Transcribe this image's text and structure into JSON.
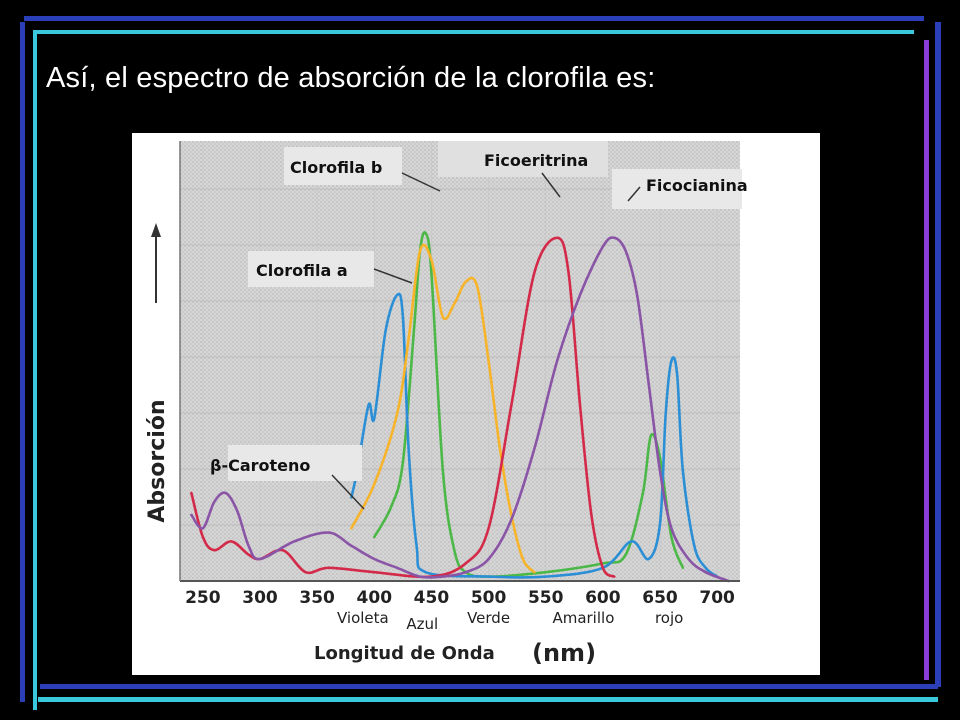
{
  "slide": {
    "title": "Así, el espectro de absorción de la clorofila es:"
  },
  "colors": {
    "background": "#000000",
    "frame_blue": "#2a3fb8",
    "frame_cyan": "#39c8dc",
    "frame_purple": "#8a3cd8"
  },
  "chart_data": {
    "type": "line",
    "xlabel": "Longitud de Onda",
    "xlabel_unit": "(nm)",
    "ylabel": "Absorción",
    "xlim": [
      230,
      720
    ],
    "ylim": [
      0,
      100
    ],
    "x_ticks": [
      250,
      300,
      350,
      400,
      450,
      500,
      550,
      600,
      650,
      700
    ],
    "regions": [
      {
        "label": "Violeta",
        "x": 390
      },
      {
        "label": "Azul",
        "x": 442
      },
      {
        "label": "Verde",
        "x": 500
      },
      {
        "label": "Amarillo",
        "x": 583
      },
      {
        "label": "rojo",
        "x": 658
      }
    ],
    "grid": true,
    "series": [
      {
        "name": "Clorofila b",
        "color": "#4cb848",
        "points": [
          [
            400,
            10
          ],
          [
            415,
            17
          ],
          [
            425,
            27
          ],
          [
            435,
            58
          ],
          [
            440,
            75
          ],
          [
            445,
            79
          ],
          [
            450,
            70
          ],
          [
            460,
            25
          ],
          [
            470,
            7
          ],
          [
            480,
            2
          ],
          [
            500,
            1
          ],
          [
            550,
            2
          ],
          [
            600,
            4
          ],
          [
            620,
            6
          ],
          [
            635,
            20
          ],
          [
            642,
            33
          ],
          [
            650,
            28
          ],
          [
            660,
            10
          ],
          [
            670,
            3
          ]
        ]
      },
      {
        "name": "Clorofila a",
        "color": "#2c8fd6",
        "points": [
          [
            380,
            19
          ],
          [
            385,
            25
          ],
          [
            395,
            40
          ],
          [
            400,
            37
          ],
          [
            410,
            57
          ],
          [
            420,
            65
          ],
          [
            425,
            60
          ],
          [
            430,
            30
          ],
          [
            437,
            8
          ],
          [
            445,
            2
          ],
          [
            500,
            1
          ],
          [
            550,
            1
          ],
          [
            600,
            3
          ],
          [
            625,
            9
          ],
          [
            640,
            5
          ],
          [
            650,
            13
          ],
          [
            655,
            38
          ],
          [
            660,
            50
          ],
          [
            665,
            47
          ],
          [
            670,
            25
          ],
          [
            680,
            8
          ],
          [
            690,
            3
          ],
          [
            700,
            1
          ]
        ]
      },
      {
        "name": "β-Caroteno",
        "color": "#f7b42a",
        "points": [
          [
            380,
            12
          ],
          [
            400,
            22
          ],
          [
            420,
            38
          ],
          [
            430,
            55
          ],
          [
            440,
            75
          ],
          [
            450,
            73
          ],
          [
            460,
            60
          ],
          [
            470,
            63
          ],
          [
            480,
            68
          ],
          [
            490,
            67
          ],
          [
            500,
            50
          ],
          [
            510,
            30
          ],
          [
            520,
            15
          ],
          [
            530,
            5
          ],
          [
            540,
            2
          ]
        ]
      },
      {
        "name": "Ficoeritrina",
        "color": "#d42a4a",
        "points": [
          [
            240,
            20
          ],
          [
            250,
            10
          ],
          [
            260,
            7
          ],
          [
            275,
            9
          ],
          [
            290,
            6
          ],
          [
            300,
            5
          ],
          [
            320,
            7
          ],
          [
            340,
            2
          ],
          [
            360,
            3
          ],
          [
            400,
            2
          ],
          [
            450,
            1
          ],
          [
            480,
            4
          ],
          [
            500,
            12
          ],
          [
            520,
            40
          ],
          [
            540,
            70
          ],
          [
            560,
            78
          ],
          [
            570,
            70
          ],
          [
            580,
            40
          ],
          [
            590,
            15
          ],
          [
            600,
            3
          ],
          [
            610,
            1
          ]
        ]
      },
      {
        "name": "Ficocianina",
        "color": "#8a55a6",
        "points": [
          [
            240,
            15
          ],
          [
            250,
            12
          ],
          [
            260,
            18
          ],
          [
            270,
            20
          ],
          [
            280,
            16
          ],
          [
            290,
            8
          ],
          [
            300,
            5
          ],
          [
            330,
            9
          ],
          [
            360,
            11
          ],
          [
            380,
            8
          ],
          [
            400,
            5
          ],
          [
            420,
            3
          ],
          [
            440,
            1
          ],
          [
            460,
            1
          ],
          [
            480,
            2
          ],
          [
            500,
            5
          ],
          [
            520,
            14
          ],
          [
            540,
            30
          ],
          [
            560,
            50
          ],
          [
            580,
            65
          ],
          [
            600,
            76
          ],
          [
            610,
            78
          ],
          [
            620,
            75
          ],
          [
            630,
            65
          ],
          [
            640,
            45
          ],
          [
            650,
            25
          ],
          [
            660,
            12
          ],
          [
            675,
            5
          ],
          [
            690,
            2
          ],
          [
            710,
            0
          ]
        ]
      }
    ]
  }
}
